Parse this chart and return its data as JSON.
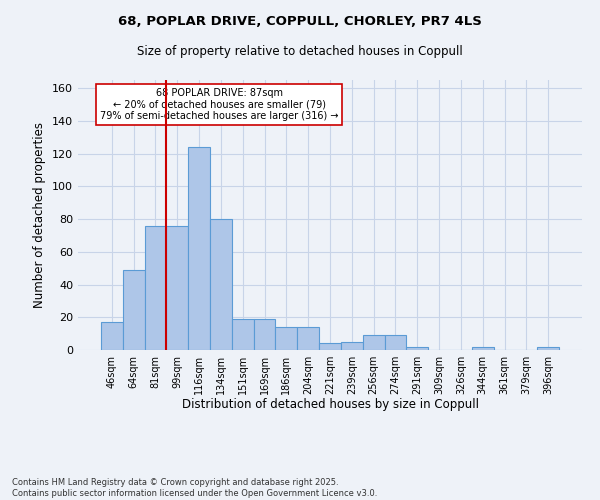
{
  "title_line1": "68, POPLAR DRIVE, COPPULL, CHORLEY, PR7 4LS",
  "title_line2": "Size of property relative to detached houses in Coppull",
  "xlabel": "Distribution of detached houses by size in Coppull",
  "ylabel": "Number of detached properties",
  "categories": [
    "46sqm",
    "64sqm",
    "81sqm",
    "99sqm",
    "116sqm",
    "134sqm",
    "151sqm",
    "169sqm",
    "186sqm",
    "204sqm",
    "221sqm",
    "239sqm",
    "256sqm",
    "274sqm",
    "291sqm",
    "309sqm",
    "326sqm",
    "344sqm",
    "361sqm",
    "379sqm",
    "396sqm"
  ],
  "values": [
    17,
    49,
    76,
    76,
    124,
    80,
    19,
    19,
    14,
    14,
    4,
    5,
    9,
    9,
    2,
    0,
    0,
    2,
    0,
    0,
    2
  ],
  "bar_color": "#aec6e8",
  "bar_edge_color": "#5b9bd5",
  "grid_color": "#c8d4e8",
  "bg_color": "#eef2f8",
  "vline_color": "#cc0000",
  "vline_pos": 2.5,
  "annotation_text": "68 POPLAR DRIVE: 87sqm\n← 20% of detached houses are smaller (79)\n79% of semi-detached houses are larger (316) →",
  "annotation_box_color": "#ffffff",
  "annotation_box_edge": "#cc0000",
  "footer_text": "Contains HM Land Registry data © Crown copyright and database right 2025.\nContains public sector information licensed under the Open Government Licence v3.0.",
  "ylim_max": 165,
  "yticks": [
    0,
    20,
    40,
    60,
    80,
    100,
    120,
    140,
    160
  ]
}
